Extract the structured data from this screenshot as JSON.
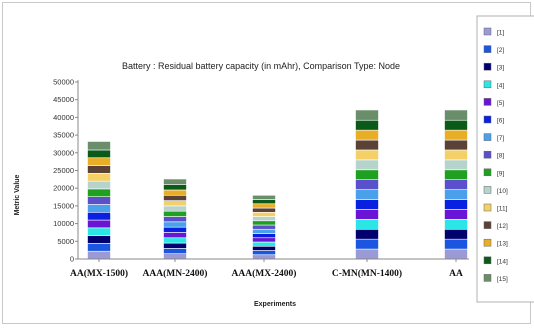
{
  "chart_data": {
    "type": "bar",
    "stacked": true,
    "title": "Battery :  Residual battery capacity  (in mAhr), Comparison Type: Node",
    "xlabel": "Experiments",
    "ylabel": "Metric Value",
    "ylim": [
      0,
      50000
    ],
    "yticks": [
      0,
      5000,
      10000,
      15000,
      20000,
      25000,
      30000,
      35000,
      40000,
      45000,
      50000
    ],
    "grid": false,
    "legend_position": "right",
    "categories": [
      "AA(MX-1500)",
      "AAA(MN-2400)",
      "AAA(MX-2400)",
      "C-MN(MN-1400)",
      "AA"
    ],
    "series": [
      {
        "name": "[1]",
        "color": "#9a9ad6",
        "values": [
          2200,
          1500,
          1200,
          2800,
          2800
        ]
      },
      {
        "name": "[2]",
        "color": "#1a56e0",
        "values": [
          2200,
          1500,
          1200,
          2800,
          2800
        ]
      },
      {
        "name": "[3]",
        "color": "#00006e",
        "values": [
          2200,
          1500,
          1200,
          2800,
          2800
        ]
      },
      {
        "name": "[4]",
        "color": "#2ae6e6",
        "values": [
          2200,
          1500,
          1200,
          2800,
          2800
        ]
      },
      {
        "name": "[5]",
        "color": "#6a14d6",
        "values": [
          2200,
          1500,
          1200,
          2800,
          2800
        ]
      },
      {
        "name": "[6]",
        "color": "#0a20e0",
        "values": [
          2200,
          1500,
          1200,
          2800,
          2800
        ]
      },
      {
        "name": "[7]",
        "color": "#4aa0ea",
        "values": [
          2200,
          1500,
          1200,
          2800,
          2800
        ]
      },
      {
        "name": "[8]",
        "color": "#5a50cc",
        "values": [
          2200,
          1500,
          1200,
          2800,
          2800
        ]
      },
      {
        "name": "[9]",
        "color": "#20a020",
        "values": [
          2200,
          1500,
          1200,
          2800,
          2800
        ]
      },
      {
        "name": "[10]",
        "color": "#b6d4cc",
        "values": [
          2200,
          1500,
          1200,
          2800,
          2800
        ]
      },
      {
        "name": "[11]",
        "color": "#f4d068",
        "values": [
          2200,
          1500,
          1200,
          2800,
          2800
        ]
      },
      {
        "name": "[12]",
        "color": "#5a4236",
        "values": [
          2200,
          1500,
          1200,
          2800,
          2800
        ]
      },
      {
        "name": "[13]",
        "color": "#e8ae26",
        "values": [
          2200,
          1500,
          1200,
          2800,
          2800
        ]
      },
      {
        "name": "[14]",
        "color": "#0a5a1a",
        "values": [
          2200,
          1500,
          1200,
          2800,
          2800
        ]
      },
      {
        "name": "[15]",
        "color": "#6a8e6a",
        "values": [
          2400,
          1600,
          1200,
          2900,
          2900
        ]
      }
    ]
  }
}
